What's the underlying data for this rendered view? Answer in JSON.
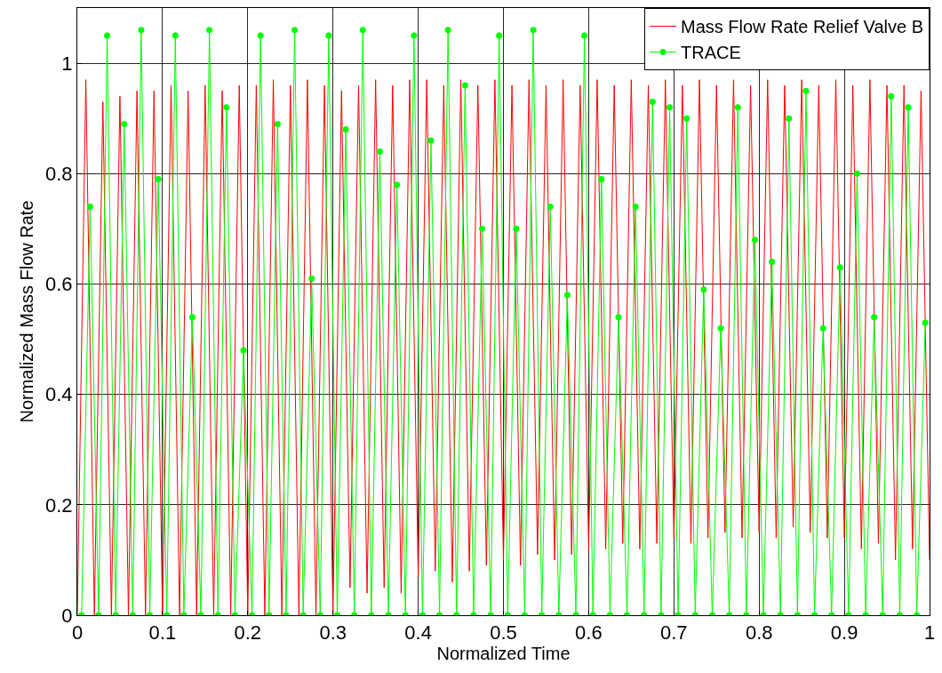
{
  "chart_data": {
    "type": "line",
    "xlabel": "Normalized Time",
    "ylabel": "Normalized Mass Flow Rate",
    "xlim": [
      0,
      1
    ],
    "ylim": [
      0,
      1.1
    ],
    "xticks": [
      0,
      0.1,
      0.2,
      0.3,
      0.4,
      0.5,
      0.6,
      0.7,
      0.8,
      0.9,
      1
    ],
    "yticks": [
      0,
      0.2,
      0.4,
      0.6,
      0.8,
      1
    ],
    "grid": true,
    "legend": "top right",
    "x": [
      0,
      0.01,
      0.02,
      0.03,
      0.04,
      0.05,
      0.06,
      0.07,
      0.08,
      0.09,
      0.1,
      0.11,
      0.12,
      0.13,
      0.14,
      0.15,
      0.16,
      0.17,
      0.18,
      0.19,
      0.2,
      0.21,
      0.22,
      0.23,
      0.24,
      0.25,
      0.26,
      0.27,
      0.28,
      0.29,
      0.3,
      0.31,
      0.32,
      0.33,
      0.34,
      0.35,
      0.36,
      0.37,
      0.38,
      0.39,
      0.4,
      0.41,
      0.42,
      0.43,
      0.44,
      0.45,
      0.46,
      0.47,
      0.48,
      0.49,
      0.5,
      0.51,
      0.52,
      0.53,
      0.54,
      0.55,
      0.56,
      0.57,
      0.58,
      0.59,
      0.6,
      0.61,
      0.62,
      0.63,
      0.64,
      0.65,
      0.66,
      0.67,
      0.68,
      0.69,
      0.7,
      0.71,
      0.72,
      0.73,
      0.74,
      0.75,
      0.76,
      0.77,
      0.78,
      0.79,
      0.8,
      0.81,
      0.82,
      0.83,
      0.84,
      0.85,
      0.86,
      0.87,
      0.88,
      0.89,
      0.9,
      0.91,
      0.92,
      0.93,
      0.94,
      0.95,
      0.96,
      0.97,
      0.98,
      0.99,
      1
    ],
    "series": [
      {
        "name": "Mass Flow Rate Relief Valve B",
        "color": "#ff0000",
        "marker": "none",
        "values": [
          0,
          0.97,
          0,
          0.93,
          0,
          0.94,
          0,
          0.95,
          0,
          0.95,
          0,
          0.96,
          0,
          0.95,
          0,
          0.96,
          0,
          0.95,
          0,
          0.96,
          0,
          0.96,
          0,
          0.97,
          0,
          0.96,
          0,
          0.97,
          0,
          0.96,
          0,
          0.95,
          0.05,
          0.96,
          0.04,
          0.97,
          0.05,
          0.96,
          0.04,
          0.97,
          0.07,
          0.97,
          0.08,
          0.96,
          0.06,
          0.97,
          0.08,
          0.96,
          0.09,
          0.97,
          0.1,
          0.96,
          0.09,
          0.97,
          0.11,
          0.96,
          0.1,
          0.97,
          0.11,
          0.96,
          0.12,
          0.97,
          0.12,
          0.96,
          0.13,
          0.97,
          0.12,
          0.96,
          0.13,
          0.97,
          0.14,
          0.96,
          0.13,
          0.97,
          0.14,
          0.96,
          0.15,
          0.97,
          0.14,
          0.96,
          0.15,
          0.97,
          0.14,
          0.96,
          0.16,
          0.97,
          0.15,
          0.96,
          0.14,
          0.97,
          0.14,
          0.96,
          0.12,
          0.97,
          0.13,
          0.96,
          0.1,
          0.96,
          0.12,
          0.95,
          0.1
        ]
      },
      {
        "name": "TRACE",
        "color": "#00ff00",
        "marker": "circle",
        "x": [
          0.005,
          0.015,
          0.025,
          0.035,
          0.045,
          0.055,
          0.065,
          0.075,
          0.085,
          0.095,
          0.105,
          0.115,
          0.125,
          0.135,
          0.145,
          0.155,
          0.165,
          0.175,
          0.185,
          0.195,
          0.205,
          0.215,
          0.225,
          0.235,
          0.245,
          0.255,
          0.265,
          0.275,
          0.285,
          0.295,
          0.305,
          0.315,
          0.325,
          0.335,
          0.345,
          0.355,
          0.365,
          0.375,
          0.385,
          0.395,
          0.405,
          0.415,
          0.425,
          0.435,
          0.445,
          0.455,
          0.465,
          0.475,
          0.485,
          0.495,
          0.505,
          0.515,
          0.525,
          0.535,
          0.545,
          0.555,
          0.565,
          0.575,
          0.585,
          0.595,
          0.605,
          0.615,
          0.625,
          0.635,
          0.645,
          0.655,
          0.665,
          0.675,
          0.685,
          0.695,
          0.705,
          0.715,
          0.725,
          0.735,
          0.745,
          0.755,
          0.765,
          0.775,
          0.785,
          0.795,
          0.805,
          0.815,
          0.825,
          0.835,
          0.845,
          0.855,
          0.865,
          0.875,
          0.885,
          0.895,
          0.905,
          0.915,
          0.925,
          0.935,
          0.945,
          0.955,
          0.965,
          0.975,
          0.985,
          0.995
        ],
        "values": [
          0,
          0.74,
          0,
          1.05,
          0,
          0.89,
          0,
          1.06,
          0,
          0.79,
          0,
          1.05,
          0,
          0.54,
          0,
          1.06,
          0,
          0.92,
          0,
          0.48,
          0,
          1.05,
          0,
          0.89,
          0,
          1.06,
          0,
          0.61,
          0,
          1.05,
          0,
          0.88,
          0,
          1.06,
          0,
          0.84,
          0,
          0.78,
          0,
          1.05,
          0,
          0.86,
          0,
          1.06,
          0,
          0.96,
          0,
          0.7,
          0,
          1.05,
          0,
          0.7,
          0,
          1.06,
          0,
          0.74,
          0,
          0.58,
          0,
          1.05,
          0,
          0.79,
          0,
          0.54,
          0,
          0.74,
          0,
          0.93,
          0,
          0.92,
          0,
          0.9,
          0,
          0.59,
          0,
          0.52,
          0,
          0.92,
          0,
          0.68,
          0,
          0.64,
          0,
          0.9,
          0,
          0.95,
          0,
          0.52,
          0,
          0.63,
          0,
          0.8,
          0,
          0.54,
          0,
          0.94,
          0,
          0.92,
          0,
          0.53
        ]
      }
    ]
  }
}
